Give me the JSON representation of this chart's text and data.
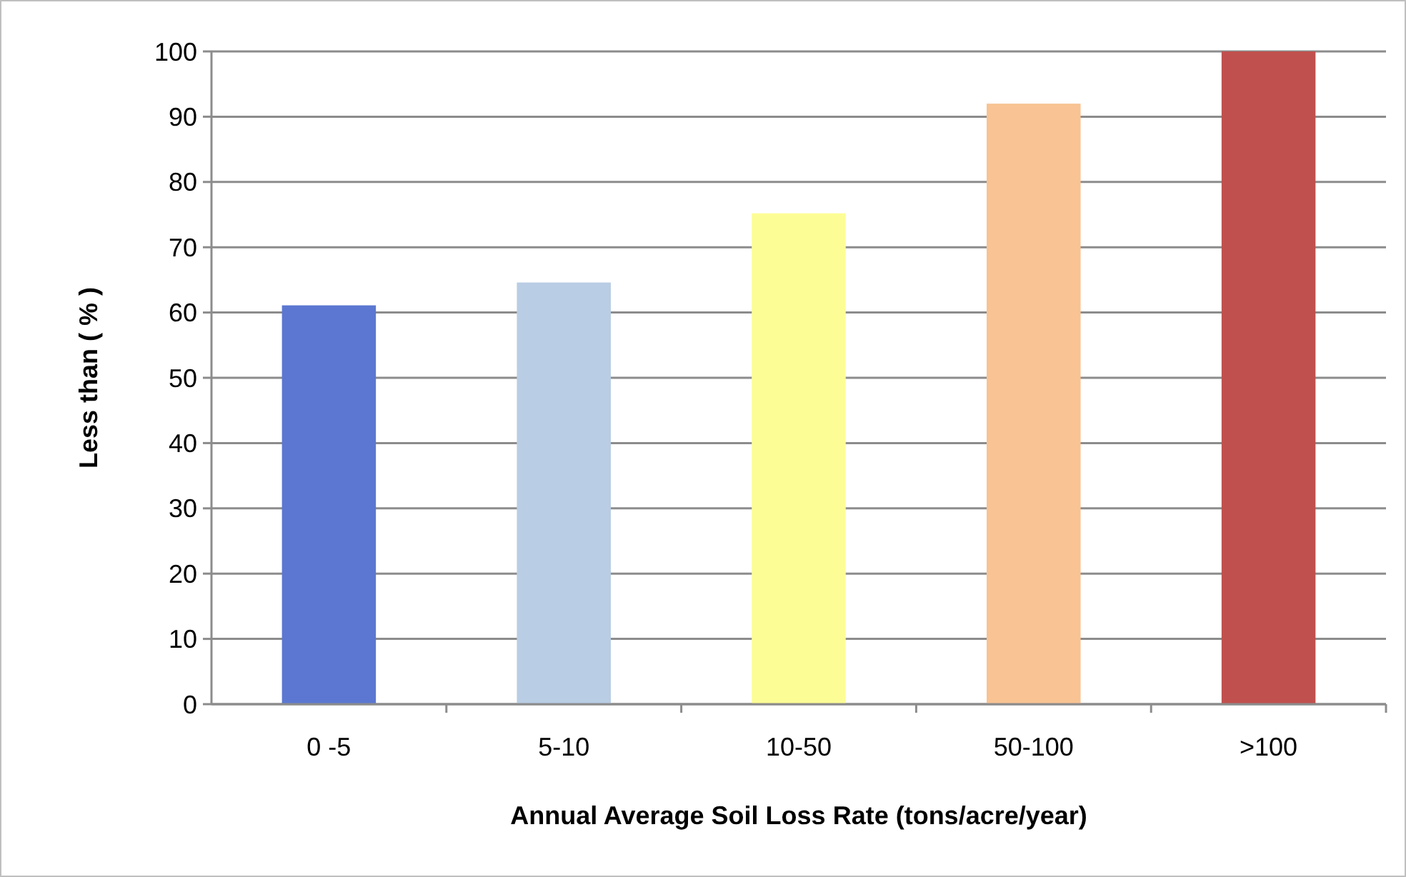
{
  "chart_data": {
    "type": "bar",
    "xlabel": "Annual Average Soil Loss Rate (tons/acre/year)",
    "ylabel": "Less than ( % )",
    "categories": [
      "0 -5",
      "5-10",
      "10-50",
      "50-100",
      ">100"
    ],
    "values": [
      61.1,
      64.6,
      75.2,
      92.0,
      100
    ],
    "colors": [
      "#5b77d1",
      "#b9cde4",
      "#fdfd96",
      "#f9c393",
      "#c0504d"
    ],
    "ylim": [
      0,
      100
    ],
    "yticks": [
      0,
      10,
      20,
      30,
      40,
      50,
      60,
      70,
      80,
      90,
      100
    ],
    "grid": "y"
  }
}
